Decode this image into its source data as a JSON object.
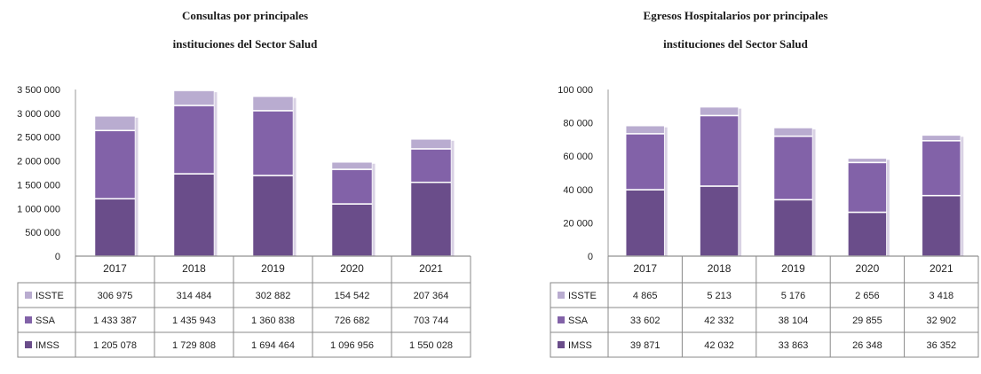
{
  "colors": {
    "ISSTE": "#b9acd0",
    "SSA": "#8262a8",
    "IMSS": "#6a4d8a"
  },
  "chart_data": [
    {
      "type": "bar",
      "stacked": true,
      "title_line1": "Consultas por principales",
      "title_line2": "instituciones del Sector Salud",
      "categories": [
        "2017",
        "2018",
        "2019",
        "2020",
        "2021"
      ],
      "ylim": [
        0,
        3500000
      ],
      "yticks": [
        0,
        500000,
        1000000,
        1500000,
        2000000,
        2500000,
        3000000,
        3500000
      ],
      "ytick_labels": [
        "0",
        "500 000",
        "1 000 000",
        "1 500 000",
        "2 000 000",
        "2 500 000",
        "3 000 000",
        "3 500 000"
      ],
      "grid": false,
      "series": [
        {
          "name": "IMSS",
          "values": [
            1205078,
            1729808,
            1694464,
            1096956,
            1550028
          ],
          "labels": [
            "1 205 078",
            "1 729 808",
            "1 694 464",
            "1 096 956",
            "1 550 028"
          ]
        },
        {
          "name": "SSA",
          "values": [
            1433387,
            1435943,
            1360838,
            726682,
            703744
          ],
          "labels": [
            "1 433 387",
            "1 435 943",
            "1 360 838",
            "726 682",
            "703 744"
          ]
        },
        {
          "name": "ISSTE",
          "values": [
            306975,
            314484,
            302882,
            154542,
            207364
          ],
          "labels": [
            "306 975",
            "314 484",
            "302 882",
            "154 542",
            "207 364"
          ]
        }
      ]
    },
    {
      "type": "bar",
      "stacked": true,
      "title_line1": "Egresos Hospitalarios por principales",
      "title_line2": "instituciones del Sector Salud",
      "categories": [
        "2017",
        "2018",
        "2019",
        "2020",
        "2021"
      ],
      "ylim": [
        0,
        100000
      ],
      "yticks": [
        0,
        20000,
        40000,
        60000,
        80000,
        100000
      ],
      "ytick_labels": [
        "0",
        "20 000",
        "40 000",
        "60 000",
        "80 000",
        "100 000"
      ],
      "grid": false,
      "series": [
        {
          "name": "IMSS",
          "values": [
            39871,
            42032,
            33863,
            26348,
            36352
          ],
          "labels": [
            "39 871",
            "42 032",
            "33 863",
            "26 348",
            "36 352"
          ]
        },
        {
          "name": "SSA",
          "values": [
            33602,
            42332,
            38104,
            29855,
            32902
          ],
          "labels": [
            "33 602",
            "42 332",
            "38 104",
            "29 855",
            "32 902"
          ]
        },
        {
          "name": "ISSTE",
          "values": [
            4865,
            5213,
            5176,
            2656,
            3418
          ],
          "labels": [
            "4 865",
            "5 213",
            "5 176",
            "2 656",
            "3 418"
          ]
        }
      ]
    }
  ]
}
